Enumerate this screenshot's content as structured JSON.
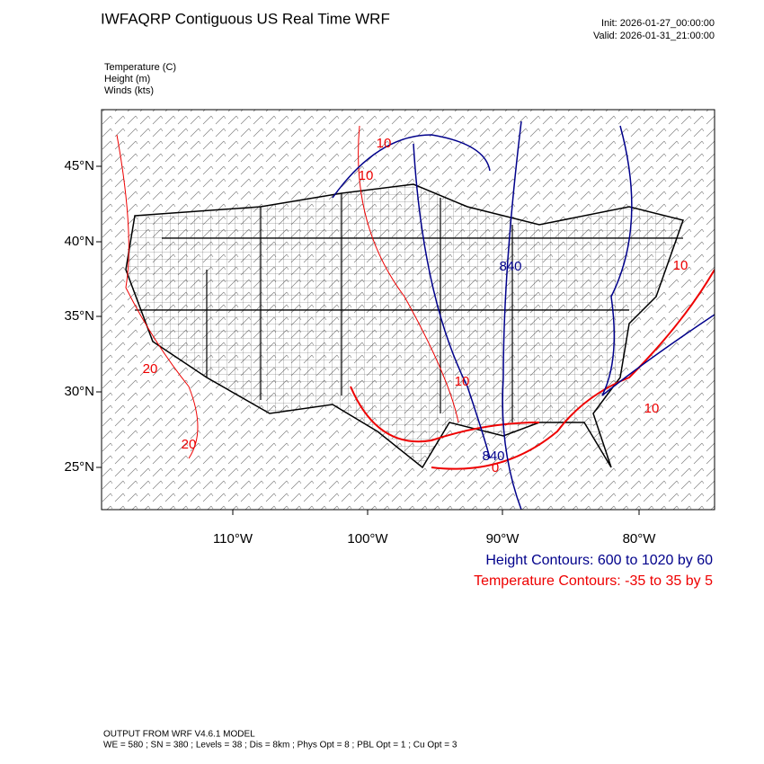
{
  "header": {
    "title": "IWFAQRP Contiguous US Real Time WRF",
    "init": "Init: 2026-01-27_00:00:00",
    "valid": "Valid: 2026-01-31_21:00:00"
  },
  "fields": [
    "Temperature   (C)",
    "Height   (m)",
    "Winds   (kts)"
  ],
  "lat_labels": [
    "45°N",
    "40°N",
    "35°N",
    "30°N",
    "25°N"
  ],
  "lon_labels": [
    "110°W",
    "100°W",
    "90°W",
    "80°W"
  ],
  "contour_labels": [
    "10",
    "10",
    "840",
    "10",
    "20",
    "10",
    "10",
    "20",
    "840",
    "0"
  ],
  "legend": {
    "height": "Height Contours: 600 to 1020 by 60",
    "temperature": "Temperature Contours: -35 to 35 by 5"
  },
  "footer": [
    "OUTPUT FROM WRF V4.6.1 MODEL",
    "WE = 580 ; SN = 380 ; Levels = 38 ; Dis = 8km ; Phys Opt = 8 ; PBL Opt = 1 ; Cu Opt = 3"
  ]
}
